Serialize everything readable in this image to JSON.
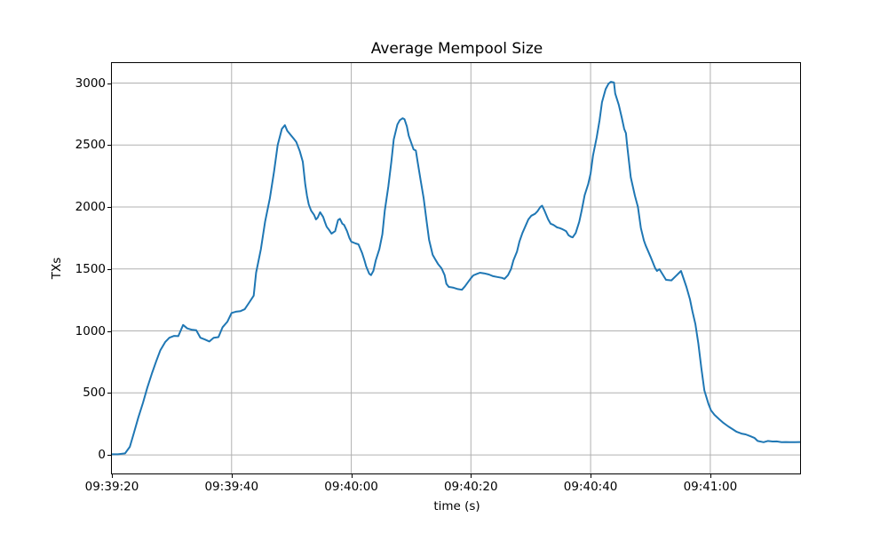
{
  "chart_data": {
    "type": "line",
    "title": "Average Mempool Size",
    "xlabel": "time (s)",
    "ylabel": "TXs",
    "legend": "none",
    "grid": true,
    "grid_color": "#b0b0b0",
    "line_color": "#1f77b4",
    "background_color": "#ffffff",
    "x_tick_labels": [
      "09:39:20",
      "09:39:40",
      "09:40:00",
      "09:40:20",
      "09:40:40",
      "09:41:00"
    ],
    "x_tick_seconds": [
      0,
      20,
      40,
      60,
      80,
      100
    ],
    "y_ticks": [
      0,
      500,
      1000,
      1500,
      2000,
      2500,
      3000
    ],
    "x_start_time": "09:39:20",
    "x_range_seconds": [
      0,
      115
    ],
    "y_range": [
      -150,
      3161
    ],
    "series": [
      {
        "name": "average-mempool-size",
        "points": [
          [
            0,
            5
          ],
          [
            1,
            5
          ],
          [
            2.2,
            12
          ],
          [
            3,
            65
          ],
          [
            3.7,
            180
          ],
          [
            4.4,
            300
          ],
          [
            5.2,
            420
          ],
          [
            5.9,
            540
          ],
          [
            6.7,
            660
          ],
          [
            7.4,
            755
          ],
          [
            8.1,
            845
          ],
          [
            8.9,
            910
          ],
          [
            9.6,
            945
          ],
          [
            10.4,
            960
          ],
          [
            11.1,
            958
          ],
          [
            11.9,
            1048
          ],
          [
            12.6,
            1020
          ],
          [
            13.3,
            1010
          ],
          [
            14.1,
            1005
          ],
          [
            14.8,
            945
          ],
          [
            15.6,
            930
          ],
          [
            16.3,
            915
          ],
          [
            17,
            945
          ],
          [
            17.8,
            950
          ],
          [
            18.5,
            1030
          ],
          [
            19.3,
            1075
          ],
          [
            20,
            1145
          ],
          [
            20.7,
            1155
          ],
          [
            21.5,
            1160
          ],
          [
            22.2,
            1175
          ],
          [
            23,
            1233
          ],
          [
            23.7,
            1285
          ],
          [
            24.1,
            1470
          ],
          [
            24.9,
            1660
          ],
          [
            25.6,
            1880
          ],
          [
            26.4,
            2070
          ],
          [
            27.1,
            2285
          ],
          [
            27.7,
            2500
          ],
          [
            28.4,
            2630
          ],
          [
            28.9,
            2660
          ],
          [
            29.3,
            2615
          ],
          [
            29.9,
            2580
          ],
          [
            30.4,
            2550
          ],
          [
            30.8,
            2525
          ],
          [
            31.4,
            2450
          ],
          [
            31.9,
            2365
          ],
          [
            32.3,
            2185
          ],
          [
            32.6,
            2090
          ],
          [
            32.9,
            2020
          ],
          [
            33.3,
            1970
          ],
          [
            33.8,
            1935
          ],
          [
            34.1,
            1900
          ],
          [
            34.4,
            1915
          ],
          [
            34.8,
            1958
          ],
          [
            35.3,
            1920
          ],
          [
            35.6,
            1878
          ],
          [
            35.9,
            1840
          ],
          [
            36.3,
            1815
          ],
          [
            36.7,
            1785
          ],
          [
            37.3,
            1805
          ],
          [
            37.8,
            1895
          ],
          [
            38.1,
            1905
          ],
          [
            38.5,
            1865
          ],
          [
            38.8,
            1855
          ],
          [
            39.3,
            1805
          ],
          [
            39.7,
            1750
          ],
          [
            40,
            1720
          ],
          [
            40.7,
            1706
          ],
          [
            41.2,
            1698
          ],
          [
            41.8,
            1630
          ],
          [
            42.2,
            1570
          ],
          [
            42.5,
            1520
          ],
          [
            43,
            1462
          ],
          [
            43.3,
            1450
          ],
          [
            43.7,
            1485
          ],
          [
            44.1,
            1570
          ],
          [
            44.7,
            1660
          ],
          [
            45.2,
            1780
          ],
          [
            45.6,
            1970
          ],
          [
            46.2,
            2165
          ],
          [
            46.7,
            2365
          ],
          [
            47.1,
            2545
          ],
          [
            47.7,
            2665
          ],
          [
            48.1,
            2700
          ],
          [
            48.6,
            2716
          ],
          [
            48.9,
            2708
          ],
          [
            49.3,
            2650
          ],
          [
            49.6,
            2575
          ],
          [
            50.4,
            2465
          ],
          [
            50.8,
            2455
          ],
          [
            51.1,
            2360
          ],
          [
            51.6,
            2215
          ],
          [
            52.1,
            2070
          ],
          [
            52.6,
            1880
          ],
          [
            53,
            1735
          ],
          [
            53.6,
            1615
          ],
          [
            54.1,
            1572
          ],
          [
            54.5,
            1540
          ],
          [
            55.1,
            1505
          ],
          [
            55.6,
            1450
          ],
          [
            55.9,
            1380
          ],
          [
            56.3,
            1355
          ],
          [
            57,
            1350
          ],
          [
            57.8,
            1338
          ],
          [
            58.5,
            1332
          ],
          [
            59,
            1360
          ],
          [
            59.6,
            1400
          ],
          [
            60,
            1425
          ],
          [
            60.4,
            1448
          ],
          [
            61,
            1460
          ],
          [
            61.5,
            1470
          ],
          [
            62.2,
            1465
          ],
          [
            63,
            1455
          ],
          [
            63.7,
            1442
          ],
          [
            64.4,
            1435
          ],
          [
            65.2,
            1428
          ],
          [
            65.6,
            1420
          ],
          [
            66.2,
            1450
          ],
          [
            66.7,
            1500
          ],
          [
            67.1,
            1570
          ],
          [
            67.7,
            1640
          ],
          [
            68.1,
            1720
          ],
          [
            68.6,
            1790
          ],
          [
            69.2,
            1855
          ],
          [
            69.6,
            1900
          ],
          [
            70.1,
            1930
          ],
          [
            70.7,
            1945
          ],
          [
            71.1,
            1965
          ],
          [
            71.6,
            2000
          ],
          [
            71.9,
            2010
          ],
          [
            72.3,
            1970
          ],
          [
            72.9,
            1900
          ],
          [
            73.3,
            1865
          ],
          [
            73.8,
            1855
          ],
          [
            74.4,
            1835
          ],
          [
            74.8,
            1830
          ],
          [
            75.3,
            1820
          ],
          [
            75.9,
            1805
          ],
          [
            76.3,
            1772
          ],
          [
            76.7,
            1760
          ],
          [
            77,
            1755
          ],
          [
            77.5,
            1790
          ],
          [
            78.1,
            1880
          ],
          [
            78.5,
            1970
          ],
          [
            79,
            2095
          ],
          [
            79.6,
            2185
          ],
          [
            80,
            2270
          ],
          [
            80.4,
            2415
          ],
          [
            81,
            2560
          ],
          [
            81.5,
            2700
          ],
          [
            81.9,
            2845
          ],
          [
            82.5,
            2950
          ],
          [
            83,
            2995
          ],
          [
            83.4,
            3010
          ],
          [
            83.9,
            3005
          ],
          [
            84.1,
            2915
          ],
          [
            84.7,
            2825
          ],
          [
            85.2,
            2720
          ],
          [
            85.6,
            2630
          ],
          [
            85.9,
            2595
          ],
          [
            86.1,
            2500
          ],
          [
            86.7,
            2240
          ],
          [
            87.4,
            2090
          ],
          [
            87.9,
            2000
          ],
          [
            88.4,
            1830
          ],
          [
            88.9,
            1730
          ],
          [
            89.2,
            1690
          ],
          [
            90,
            1600
          ],
          [
            90.8,
            1505
          ],
          [
            91.1,
            1484
          ],
          [
            91.5,
            1498
          ],
          [
            92.6,
            1412
          ],
          [
            93.5,
            1408
          ],
          [
            94.8,
            1470
          ],
          [
            95.1,
            1484
          ],
          [
            95.6,
            1412
          ],
          [
            96,
            1355
          ],
          [
            96.6,
            1255
          ],
          [
            97,
            1160
          ],
          [
            97.5,
            1055
          ],
          [
            98,
            900
          ],
          [
            98.5,
            700
          ],
          [
            99,
            520
          ],
          [
            99.7,
            410
          ],
          [
            100.1,
            360
          ],
          [
            100.7,
            323
          ],
          [
            101.5,
            287
          ],
          [
            102.2,
            258
          ],
          [
            103,
            230
          ],
          [
            103.7,
            208
          ],
          [
            104.4,
            186
          ],
          [
            105.2,
            172
          ],
          [
            105.9,
            165
          ],
          [
            106.7,
            150
          ],
          [
            107.4,
            136
          ],
          [
            107.9,
            112
          ],
          [
            108.9,
            102
          ],
          [
            109.6,
            112
          ],
          [
            110.4,
            108
          ],
          [
            111.1,
            109
          ],
          [
            111.9,
            103
          ],
          [
            112.6,
            104
          ],
          [
            113.3,
            103
          ],
          [
            114.1,
            103
          ],
          [
            115,
            104
          ]
        ]
      }
    ]
  }
}
